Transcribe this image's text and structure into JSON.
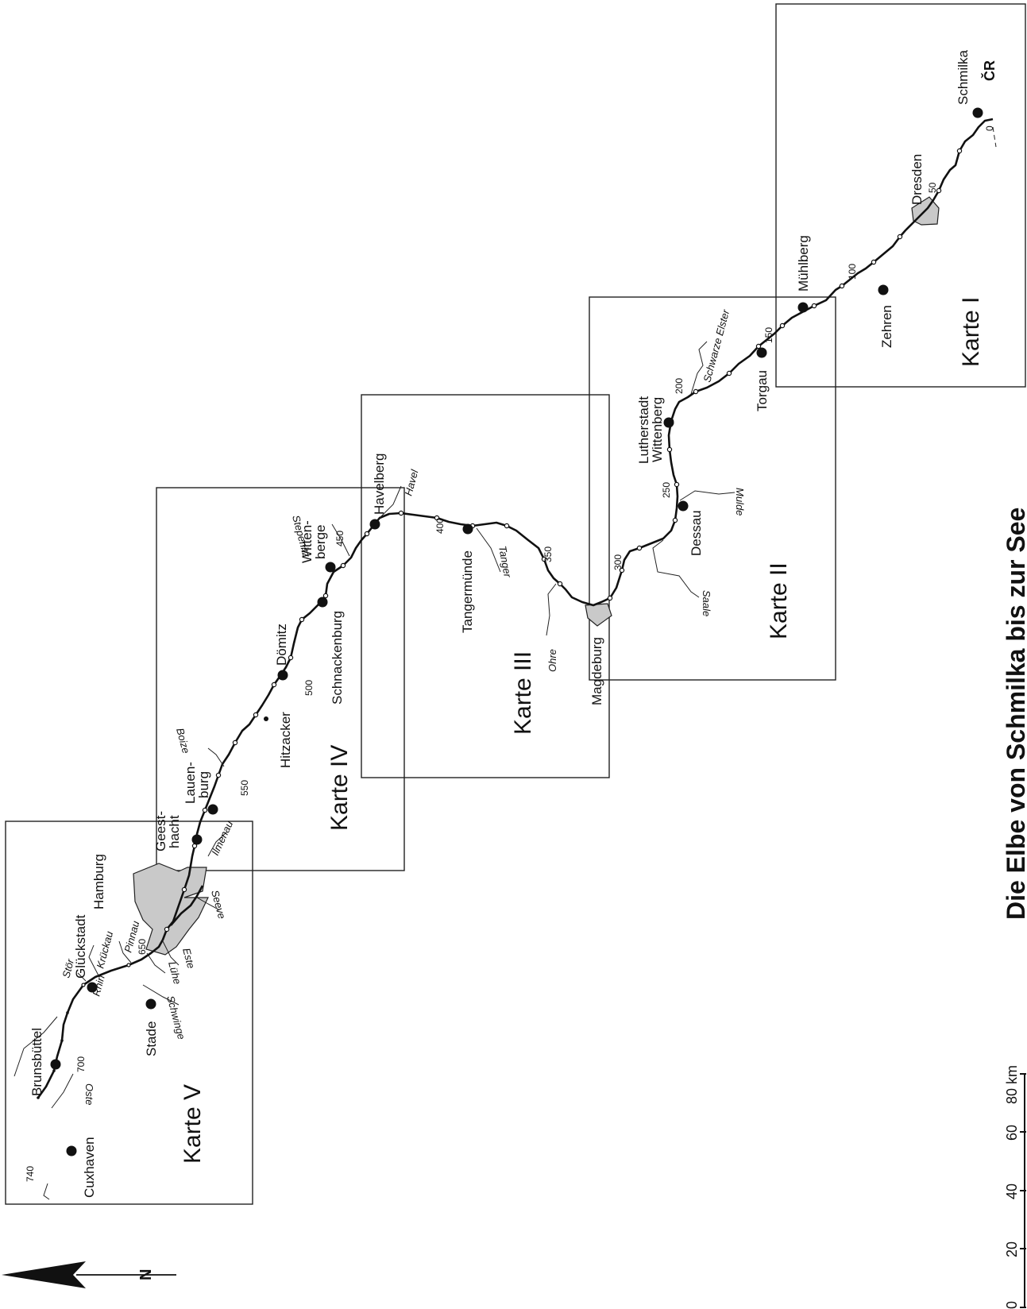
{
  "title": "Die Elbe von Schmilka bis zur See",
  "country_code": "ČR",
  "north_label": "N",
  "scale_bar": {
    "ticks": [
      "0",
      "20",
      "40",
      "60",
      "80 km"
    ]
  },
  "kartes": [
    {
      "label": "Karte I"
    },
    {
      "label": "Karte II"
    },
    {
      "label": "Karte III"
    },
    {
      "label": "Karte IV"
    },
    {
      "label": "Karte V"
    }
  ],
  "cities": [
    {
      "name": "Schmilka"
    },
    {
      "name": "Dresden"
    },
    {
      "name": "Zehren"
    },
    {
      "name": "Mühlberg"
    },
    {
      "name": "Torgau"
    },
    {
      "name": "Lutherstadt"
    },
    {
      "name": "Wittenberg"
    },
    {
      "name": "Dessau"
    },
    {
      "name": "Magdeburg"
    },
    {
      "name": "Tangermünde"
    },
    {
      "name": "Havelberg"
    },
    {
      "name": "Witten-"
    },
    {
      "name": "berge"
    },
    {
      "name": "Schnackenburg"
    },
    {
      "name": "Dömitz"
    },
    {
      "name": "Hitzacker"
    },
    {
      "name": "Lauen-"
    },
    {
      "name": "burg"
    },
    {
      "name": "Geest-"
    },
    {
      "name": "hacht"
    },
    {
      "name": "Hamburg"
    },
    {
      "name": "Glückstadt"
    },
    {
      "name": "Stade"
    },
    {
      "name": "Brunsbüttel"
    },
    {
      "name": "Cuxhaven"
    }
  ],
  "rivers": [
    {
      "name": "Schwarze Elster"
    },
    {
      "name": "Mulde"
    },
    {
      "name": "Saale"
    },
    {
      "name": "Ohre"
    },
    {
      "name": "Tanger"
    },
    {
      "name": "Havel"
    },
    {
      "name": "Stepenitz"
    },
    {
      "name": "Boize"
    },
    {
      "name": "Ilmenau"
    },
    {
      "name": "Seeve"
    },
    {
      "name": "Este"
    },
    {
      "name": "Lühe"
    },
    {
      "name": "Schwinge"
    },
    {
      "name": "Pinnau"
    },
    {
      "name": "Krückau"
    },
    {
      "name": "Rhin"
    },
    {
      "name": "Stör"
    },
    {
      "name": "Oste"
    }
  ],
  "km_markers": [
    {
      "label": "0"
    },
    {
      "label": "50"
    },
    {
      "label": "100"
    },
    {
      "label": "150"
    },
    {
      "label": "200"
    },
    {
      "label": "250"
    },
    {
      "label": "300"
    },
    {
      "label": "350"
    },
    {
      "label": "400"
    },
    {
      "label": "450"
    },
    {
      "label": "500"
    },
    {
      "label": "550"
    },
    {
      "label": "650"
    },
    {
      "label": "700"
    },
    {
      "label": "740"
    }
  ]
}
